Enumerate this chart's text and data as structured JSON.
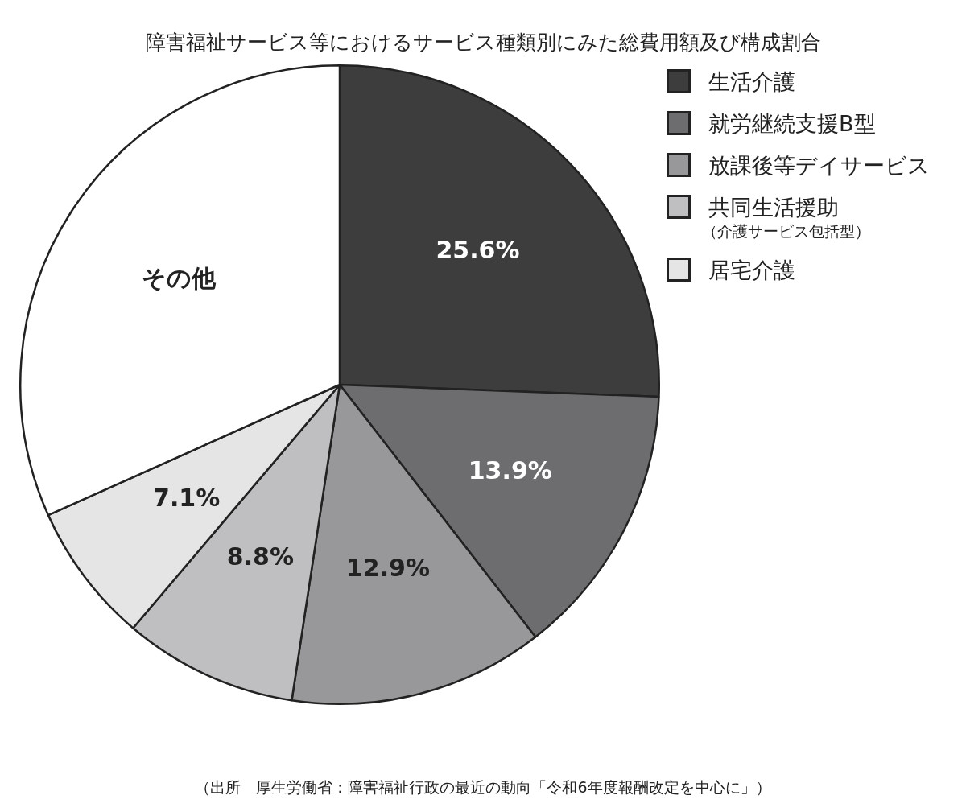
{
  "chart_data": {
    "type": "pie",
    "title": "障害福祉サービス等におけるサービス種類別にみた総費用額及び構成割合",
    "categories": [
      "生活介護",
      "就労継続支援B型",
      "放課後等デイサービス",
      "共同生活援助（介護サービス包括型）",
      "居宅介護",
      "その他"
    ],
    "values": [
      25.6,
      13.9,
      12.9,
      8.8,
      7.1,
      31.7
    ],
    "colors": [
      "#3d3d3d",
      "#6d6d6f",
      "#98989a",
      "#bfbfc1",
      "#e5e5e5",
      "#ffffff"
    ],
    "value_labels": [
      "25.6%",
      "13.9%",
      "12.9%",
      "8.8%",
      "7.1%",
      null
    ],
    "legend": "top right",
    "annotations": [
      "（出所　厚生労働省：障害福祉行政の最近の動向「令和6年度報酬改定を中心に」）"
    ]
  }
}
